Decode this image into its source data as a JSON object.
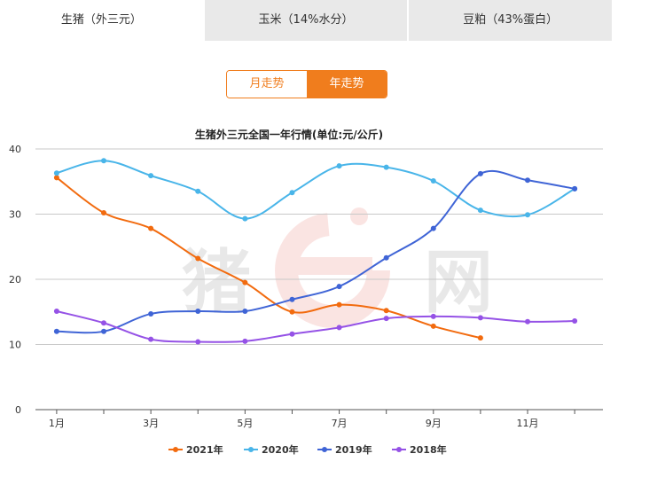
{
  "tabs": [
    {
      "label": "生猪（外三元）",
      "active": true
    },
    {
      "label": "玉米（14%水分）",
      "active": false
    },
    {
      "label": "豆粕（43%蛋白）",
      "active": false
    }
  ],
  "toggle": {
    "month_label": "月走势",
    "year_label": "年走势",
    "selected": "year"
  },
  "watermark": {
    "text1": "猪",
    "text2": "网"
  },
  "chart_data": {
    "type": "line",
    "title": "生猪外三元全国一年行情(单位:元/公斤)",
    "x": [
      1,
      2,
      3,
      4,
      5,
      6,
      7,
      8,
      9,
      10,
      11,
      12
    ],
    "x_tick_labels": [
      {
        "x": 1,
        "label": "1月"
      },
      {
        "x": 3,
        "label": "3月"
      },
      {
        "x": 5,
        "label": "5月"
      },
      {
        "x": 7,
        "label": "7月"
      },
      {
        "x": 9,
        "label": "9月"
      },
      {
        "x": 11,
        "label": "11月"
      }
    ],
    "ylim": [
      0,
      40
    ],
    "yticks": [
      0,
      10,
      20,
      30,
      40
    ],
    "grid": true,
    "legend_position": "bottom",
    "series": [
      {
        "name": "2021年",
        "color": "#f26b0f",
        "values": [
          35.6,
          30.2,
          27.8,
          23.2,
          19.5,
          15.0,
          16.1,
          15.2,
          12.8,
          11.0,
          null,
          null
        ]
      },
      {
        "name": "2020年",
        "color": "#49b5e9",
        "values": [
          36.3,
          38.2,
          35.9,
          33.5,
          29.3,
          33.3,
          37.4,
          37.2,
          35.1,
          30.6,
          29.9,
          33.9
        ]
      },
      {
        "name": "2019年",
        "color": "#3f64d6",
        "values": [
          12.0,
          12.0,
          14.7,
          15.1,
          15.1,
          16.9,
          18.9,
          23.3,
          27.8,
          36.2,
          35.2,
          33.9
        ]
      },
      {
        "name": "2018年",
        "color": "#9552e6",
        "values": [
          15.1,
          13.3,
          10.8,
          10.4,
          10.5,
          11.6,
          12.6,
          14.0,
          14.3,
          14.1,
          13.5,
          13.6
        ]
      }
    ]
  }
}
